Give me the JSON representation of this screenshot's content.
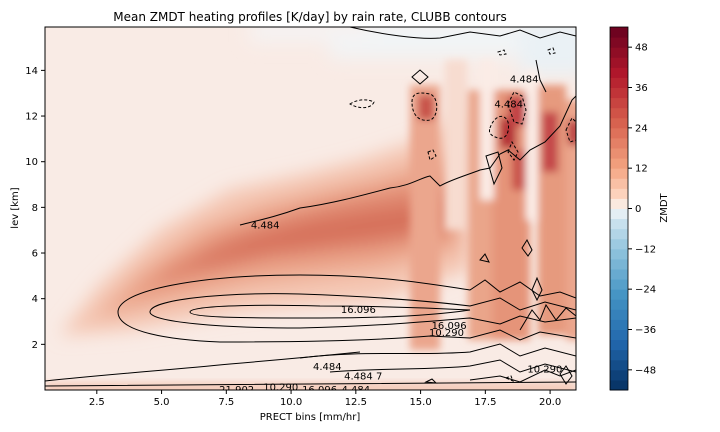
{
  "chart_data": {
    "type": "heatmap",
    "title": "Mean ZMDT heating profiles [K/day] by rain rate, CLUBB contours",
    "xlabel": "PRECT bins [mm/hr]",
    "ylabel": "lev [km]",
    "xlim": [
      0.5,
      21.0
    ],
    "ylim": [
      0.0,
      15.9
    ],
    "xticks": [
      "2.5",
      "5.0",
      "7.5",
      "10.0",
      "12.5",
      "15.0",
      "17.5",
      "20.0"
    ],
    "xtick_values": [
      2.5,
      5.0,
      7.5,
      10.0,
      12.5,
      15.0,
      17.5,
      20.0
    ],
    "yticks": [
      "2",
      "4",
      "6",
      "8",
      "10",
      "12",
      "14"
    ],
    "ytick_values": [
      2,
      4,
      6,
      8,
      10,
      12,
      14
    ],
    "colorbar": {
      "label": "ZMDT",
      "range": [
        -54,
        54
      ],
      "ticks": [
        "48",
        "36",
        "24",
        "12",
        "0",
        "−12",
        "−24",
        "−36",
        "−48"
      ],
      "tick_values": [
        48,
        36,
        24,
        12,
        0,
        -12,
        -24,
        -36,
        -48
      ],
      "colormap": "RdBu_r"
    },
    "heating_features": [
      {
        "name": "main heating band",
        "x": [
          2,
          15
        ],
        "y": [
          3,
          10.5
        ],
        "peak_value": 20
      },
      {
        "name": "convective column",
        "x": 15.1,
        "y": [
          2,
          13
        ],
        "peak_value": 34
      },
      {
        "name": "convective column",
        "x": 17.9,
        "y": [
          2,
          13
        ],
        "peak_value": 32
      },
      {
        "name": "convective column",
        "x": 18.9,
        "y": [
          2,
          13.5
        ],
        "peak_value": 38
      },
      {
        "name": "convective column",
        "x": 20.0,
        "y": [
          2,
          13
        ],
        "peak_value": 34
      },
      {
        "name": "convective column",
        "x": 21.0,
        "y": [
          2,
          13
        ],
        "peak_value": 28
      }
    ],
    "contour_labels": [
      {
        "text": "4.484",
        "x": 9.0,
        "y": 7.2
      },
      {
        "text": "4.484",
        "x": 18.4,
        "y": 12.5
      },
      {
        "text": "4.484",
        "x": 19.0,
        "y": 13.6
      },
      {
        "text": "16.096",
        "x": 12.6,
        "y": 3.5
      },
      {
        "text": "16.096",
        "x": 16.1,
        "y": 2.8
      },
      {
        "text": "10.290",
        "x": 16.0,
        "y": 2.5
      },
      {
        "text": "10.290",
        "x": 19.8,
        "y": 0.9
      },
      {
        "text": "4.484",
        "x": 11.4,
        "y": 1.0
      },
      {
        "text": "4.484",
        "x": 12.6,
        "y": 0.6
      },
      {
        "text": "7",
        "x": 13.4,
        "y": 0.6
      },
      {
        "text": "21.902",
        "x": 7.9,
        "y": 0.0
      },
      {
        "text": "10.290",
        "x": 9.6,
        "y": 0.1
      },
      {
        "text": "16.096",
        "x": 11.1,
        "y": 0.0
      },
      {
        "text": "4.484",
        "x": 12.5,
        "y": 0.0
      }
    ]
  }
}
